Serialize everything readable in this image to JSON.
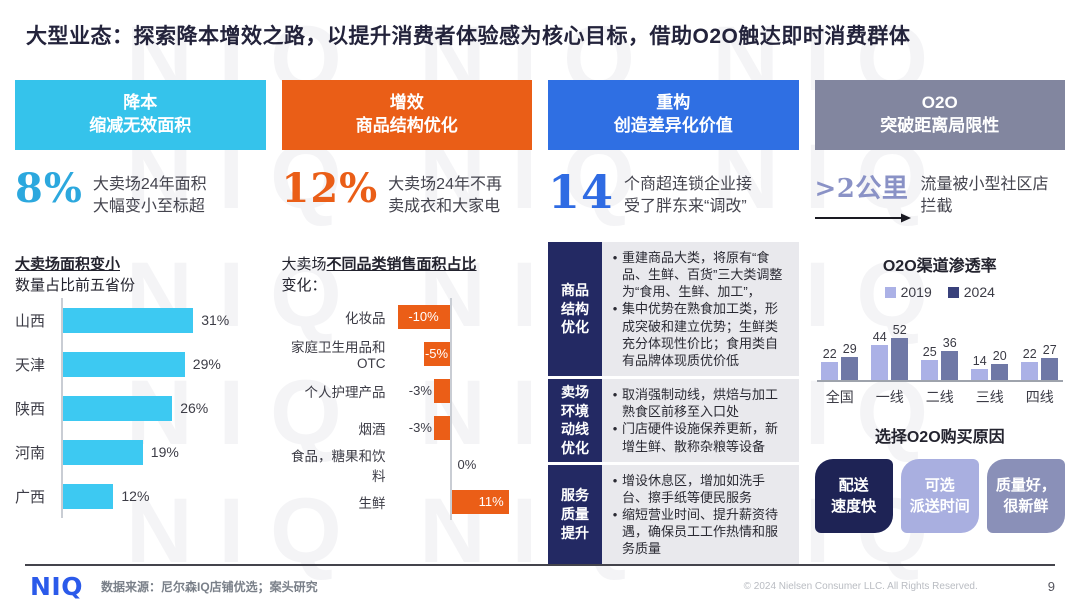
{
  "title": "大型业态：探索降本增效之路，以提升消费者体验感为核心目标，借助O2O触达即时消费群体",
  "watermark": "NIQ",
  "pillars": [
    {
      "line1": "降本",
      "line2": "缩减无效面积",
      "color": "#35C3EB"
    },
    {
      "line1": "增效",
      "line2": "商品结构优化",
      "color": "#EA5E17"
    },
    {
      "line1": "重构",
      "line2": "创造差异化价值",
      "color": "#2F6FE3"
    },
    {
      "line1": "O2O",
      "line2": "突破距离局限性",
      "color": "#82869F"
    }
  ],
  "stats": [
    {
      "value": "8%",
      "desc": "大卖场24年面积\n大幅变小至标超",
      "color": "#2CA8DE"
    },
    {
      "value": "12%",
      "desc": "大卖场24年不再\n卖成衣和大家电",
      "color": "#EA5E17"
    },
    {
      "value": "14",
      "desc": "个商超连锁企业接\n受了胖东来“调改”",
      "color": "#2F6BE3"
    },
    {
      "value": ">2公里",
      "desc": "流量被小型社区店\n拦截",
      "color": "#8A92C6"
    }
  ],
  "section_labels": {
    "col1_bold": "大卖场面积变小",
    "col1_rest": "数量占比前五省份",
    "col2_prefix": "大卖场",
    "col2_bold": "不同品类销售面积占比",
    "col2_suffix": "变化："
  },
  "chart_data": [
    {
      "type": "bar",
      "orientation": "horizontal",
      "title": "大卖场面积变小数量占比前五省份",
      "categories": [
        "山西",
        "天津",
        "陕西",
        "河南",
        "广西"
      ],
      "values": [
        31,
        29,
        26,
        19,
        12
      ],
      "unit": "%",
      "bar_color": "#3DC9F2",
      "xlim": [
        0,
        35
      ]
    },
    {
      "type": "bar",
      "orientation": "horizontal-diverging",
      "title": "大卖场不同品类销售面积占比变化",
      "categories": [
        "化妆品",
        "家庭卫生用品和OTC",
        "个人护理产品",
        "烟酒",
        "食品，糖果和饮料",
        "生鲜"
      ],
      "values": [
        -10,
        -5,
        -3,
        -3,
        0,
        11
      ],
      "unit": "%",
      "bar_color": "#EB5E17",
      "xlim": [
        -12,
        14
      ]
    },
    {
      "type": "bar",
      "orientation": "vertical-grouped",
      "title": "O2O渠道渗透率",
      "categories": [
        "全国",
        "一线",
        "二线",
        "三线",
        "四线"
      ],
      "series": [
        {
          "name": "2019",
          "values": [
            22,
            44,
            25,
            14,
            22
          ],
          "bar_color": "#ABB1E6",
          "legend_color": "#ABB1E6"
        },
        {
          "name": "2024",
          "values": [
            29,
            52,
            36,
            20,
            27
          ],
          "bar_color": "#6F78A6",
          "legend_color": "#39417B"
        }
      ],
      "ylim": [
        0,
        55
      ],
      "legend_position": "top"
    }
  ],
  "transform_table": {
    "rows": [
      {
        "header": "商品\n结构\n优化",
        "header_flat": "商品结构优化",
        "bullets": [
          "重建商品大类，将原有“食品、生鲜、百货”三大类调整为“食用、生鲜、加工”，",
          "集中优势在熟食加工类，形成突破和建立优势；生鲜类充分体现性价比；食用类自有品牌体现质优价低"
        ]
      },
      {
        "header": "卖场\n环境\n动线\n优化",
        "header_flat": "卖场环境动线优化",
        "bullets": [
          "取消强制动线，烘焙与加工熟食区前移至入口处",
          "门店硬件设施保养更新，新增生鲜、散称杂粮等设备"
        ]
      },
      {
        "header": "服务\n质量\n提升",
        "header_flat": "服务质量提升",
        "bullets": [
          "增设休息区，增加如洗手台、擦手纸等便民服务",
          "缩短营业时间、提升薪资待遇，确保员工工作热情和服务质量"
        ]
      }
    ],
    "header_bg": "#232963",
    "body_bg": "#E9E9ED"
  },
  "o2o": {
    "chart_title": "O2O渠道渗透率",
    "reasons_title": "选择O2O购买原因",
    "reasons": [
      {
        "text": "配送\n速度快",
        "color": "#1E2355"
      },
      {
        "text": "可选\n派送时间",
        "color": "#A9AFE0"
      },
      {
        "text": "质量好，\n很新鲜",
        "color": "#8A90B8"
      }
    ]
  },
  "footer": {
    "logo": "NIQ",
    "source": "数据来源：尼尔森IQ店铺优选；案头研究",
    "copyright": "© 2024 Nielsen Consumer LLC. All Rights Reserved.",
    "page": "9"
  }
}
